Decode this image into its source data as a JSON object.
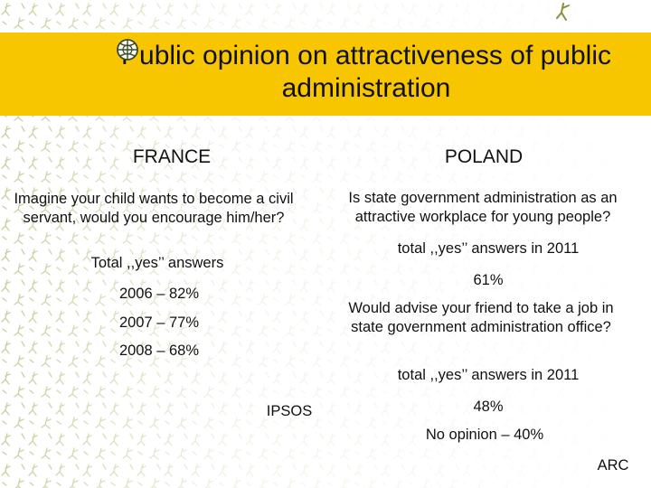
{
  "title": "Public opinion on attractiveness of public administration",
  "france": {
    "heading": "FRANCE",
    "question": "Imagine your child wants to become a civil servant, would you encourage him/her?",
    "total_label": "Total ,,yes’’ answers",
    "years": [
      "2006 – 82%",
      "2007 – 77%",
      "2008 – 68%"
    ],
    "source": "IPSOS"
  },
  "poland": {
    "heading": "POLAND",
    "question1": "Is state government administration as an attractive workplace for young people?",
    "total1": "total ,,yes’’ answers in 2011",
    "value1": "61%",
    "question2": "Would advise your friend to take a job in state government administration office?",
    "total2": "total ,,yes’’ answers in 2011",
    "value2": "48%",
    "no_opinion": "No opinion – 40%",
    "source": "ARC"
  },
  "colors": {
    "band": "#f7c600",
    "pattern": "#c9cfa0"
  },
  "icons": [
    "globe-icon"
  ]
}
